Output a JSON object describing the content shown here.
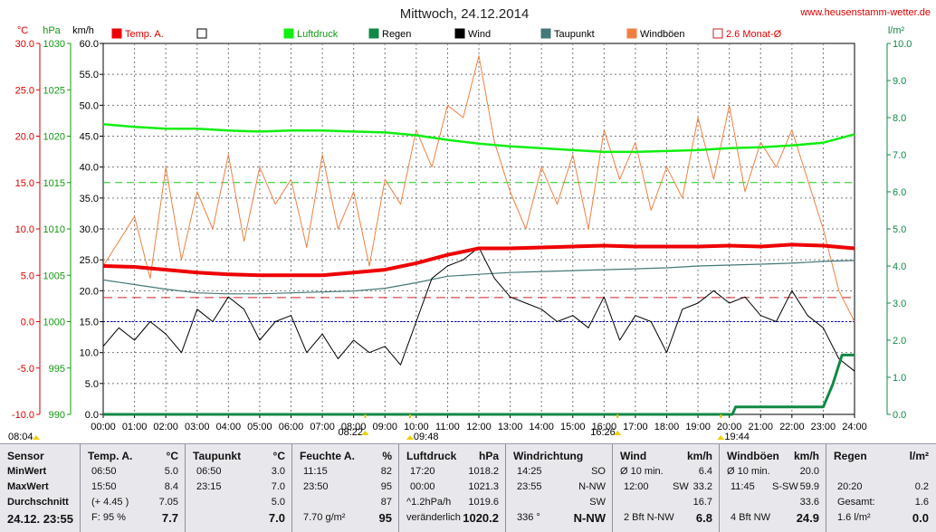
{
  "site": "www.heusenstamm-wetter.de",
  "title": "Mittwoch, 24.12.2014",
  "colors": {
    "temp": "#ee0000",
    "luftdruck": "#11ee11",
    "regen": "#118844",
    "wind": "#000000",
    "taupunkt": "#447777",
    "windboeen": "#f08040",
    "monat": "#cc2222",
    "dashed_blue": "#0000cc",
    "dashed_green": "#11cc11",
    "grid": "#333333"
  },
  "chart_data": {
    "type": "line",
    "unit_labels": {
      "temp": "°C",
      "pressure": "hPa",
      "wind": "km/h",
      "rain": "l/m²"
    },
    "axes": {
      "temp": {
        "range": [
          -10.0,
          30.0
        ],
        "ticks": [
          "30.0",
          "25.0",
          "20.0",
          "15.0",
          "10.0",
          "5.0",
          "0.0",
          "-5.0",
          "-10.0"
        ]
      },
      "pressure": {
        "range": [
          990,
          1030
        ],
        "ticks": [
          "1030",
          "1025",
          "1020",
          "1015",
          "1010",
          "1005",
          "1000",
          "995",
          "990"
        ]
      },
      "wind": {
        "range": [
          0,
          60
        ],
        "ticks": [
          "60.0",
          "55.0",
          "50.0",
          "45.0",
          "40.0",
          "35.0",
          "30.0",
          "25.0",
          "20.0",
          "15.0",
          "10.0",
          "5.0",
          "0.0"
        ]
      },
      "rain": {
        "range": [
          0,
          10
        ],
        "ticks": [
          "10.0",
          "9.0",
          "8.0",
          "7.0",
          "6.0",
          "5.0",
          "4.0",
          "3.0",
          "2.0",
          "1.0",
          "0.0"
        ]
      },
      "x_range": [
        0,
        24
      ],
      "x_ticks": [
        "00:00",
        "01:00",
        "02:00",
        "03:00",
        "04:00",
        "05:00",
        "06:00",
        "07:00",
        "08:00",
        "09:00",
        "10:00",
        "11:00",
        "12:00",
        "13:00",
        "14:00",
        "15:00",
        "16:00",
        "17:00",
        "18:00",
        "19:00",
        "20:00",
        "21:00",
        "22:00",
        "23:00",
        "24:00"
      ]
    },
    "grid": true,
    "legend": [
      {
        "name": "Temp. A.",
        "color": "#ee0000"
      },
      {
        "name": "",
        "color": "#ffffff"
      },
      {
        "name": "Luftdruck",
        "color": "#11ee11"
      },
      {
        "name": "Regen",
        "color": "#118844"
      },
      {
        "name": "Wind",
        "color": "#000000"
      },
      {
        "name": "Taupunkt",
        "color": "#447777"
      },
      {
        "name": "Windböen",
        "color": "#f08040"
      },
      {
        "name": "2.6 Monat-Ø",
        "color": "#cc2222",
        "hollow": true
      }
    ],
    "time_markers": [
      {
        "label": "08:04",
        "hour": 0.0,
        "row": "lower"
      },
      {
        "label": "08:22",
        "hour": 8.37,
        "row": "upper"
      },
      {
        "label": "09:48",
        "hour": 9.8,
        "row": "lower"
      },
      {
        "label": "16:26",
        "hour": 16.43,
        "row": "upper"
      },
      {
        "label": "19:44",
        "hour": 19.73,
        "row": "lower"
      }
    ],
    "reference_lines": {
      "monat_temp": 2.6,
      "blue_dotted_temp": 0.0,
      "green_dashed_pressure": 1015.0
    },
    "series": [
      {
        "name": "Temp. A.",
        "axis": "temp",
        "x": [
          0,
          1,
          2,
          3,
          4,
          5,
          6,
          7,
          8,
          9,
          10,
          11,
          12,
          13,
          14,
          15,
          16,
          17,
          18,
          19,
          20,
          21,
          22,
          23,
          24
        ],
        "y": [
          6.0,
          5.9,
          5.6,
          5.3,
          5.1,
          5.0,
          5.0,
          5.0,
          5.3,
          5.6,
          6.3,
          7.2,
          7.9,
          7.9,
          8.0,
          8.1,
          8.2,
          8.1,
          8.1,
          8.1,
          8.2,
          8.1,
          8.3,
          8.2,
          7.9
        ]
      },
      {
        "name": "Taupunkt",
        "axis": "temp",
        "x": [
          0,
          1,
          2,
          3,
          4,
          5,
          6,
          7,
          8,
          9,
          10,
          11,
          12,
          13,
          14,
          15,
          16,
          17,
          18,
          19,
          20,
          21,
          22,
          23,
          24
        ],
        "y": [
          4.5,
          4.0,
          3.5,
          3.1,
          3.0,
          3.0,
          3.1,
          3.2,
          3.3,
          3.6,
          4.2,
          4.9,
          5.1,
          5.3,
          5.4,
          5.5,
          5.6,
          5.7,
          5.8,
          6.0,
          6.1,
          6.2,
          6.3,
          6.5,
          6.6
        ]
      },
      {
        "name": "Luftdruck",
        "axis": "pressure",
        "x": [
          0,
          1,
          2,
          3,
          4,
          5,
          6,
          7,
          8,
          9,
          10,
          11,
          12,
          13,
          14,
          15,
          16,
          17,
          18,
          19,
          20,
          21,
          22,
          23,
          24
        ],
        "y": [
          1021.3,
          1021.0,
          1020.8,
          1020.8,
          1020.6,
          1020.5,
          1020.6,
          1020.6,
          1020.5,
          1020.4,
          1020.1,
          1019.6,
          1019.2,
          1018.9,
          1018.7,
          1018.5,
          1018.3,
          1018.3,
          1018.4,
          1018.5,
          1018.7,
          1018.8,
          1019.0,
          1019.3,
          1020.2
        ]
      },
      {
        "name": "Wind",
        "axis": "wind",
        "x": [
          0,
          0.5,
          1,
          1.5,
          2,
          2.5,
          3,
          3.5,
          4,
          4.5,
          5,
          5.5,
          6,
          6.5,
          7,
          7.5,
          8,
          8.5,
          9,
          9.5,
          10,
          10.5,
          11,
          11.5,
          12,
          12.5,
          13,
          13.5,
          14,
          14.5,
          15,
          15.5,
          16,
          16.5,
          17,
          17.5,
          18,
          18.5,
          19,
          19.5,
          20,
          20.5,
          21,
          21.5,
          22,
          22.5,
          23,
          23.5,
          24
        ],
        "y": [
          11,
          14,
          12,
          15,
          13,
          10,
          17,
          15,
          19,
          17,
          12,
          15,
          16,
          10,
          13,
          9,
          12,
          10,
          11,
          8,
          15,
          22,
          24,
          25,
          27,
          22,
          19,
          18,
          17,
          15,
          16,
          14,
          19,
          12,
          16,
          15,
          10,
          17,
          18,
          20,
          18,
          19,
          16,
          15,
          20,
          16,
          14,
          9,
          7
        ]
      },
      {
        "name": "Windböen",
        "axis": "wind",
        "x": [
          0,
          0.5,
          1,
          1.5,
          2,
          2.5,
          3,
          3.5,
          4,
          4.5,
          5,
          5.5,
          6,
          6.5,
          7,
          7.5,
          8,
          8.5,
          9,
          9.5,
          10,
          10.5,
          11,
          11.5,
          12,
          12.5,
          13,
          13.5,
          14,
          14.5,
          15,
          15.5,
          16,
          16.5,
          17,
          17.5,
          18,
          18.5,
          19,
          19.5,
          20,
          20.5,
          21,
          21.5,
          22,
          22.5,
          23,
          23.5,
          24
        ],
        "y": [
          24,
          28,
          32,
          22,
          40,
          25,
          36,
          30,
          42,
          28,
          40,
          34,
          38,
          27,
          42,
          30,
          36,
          24,
          38,
          34,
          46,
          40,
          50,
          48,
          58,
          44,
          36,
          30,
          40,
          34,
          42,
          30,
          46,
          38,
          44,
          33,
          40,
          35,
          48,
          38,
          50,
          36,
          44,
          40,
          46,
          38,
          30,
          20,
          15
        ]
      },
      {
        "name": "Regen",
        "axis": "rain",
        "x": [
          0,
          20.1,
          20.2,
          21,
          22,
          23,
          23.3,
          23.6,
          24
        ],
        "y": [
          0,
          0,
          0.2,
          0.2,
          0.2,
          0.2,
          0.8,
          1.6,
          1.6
        ]
      }
    ]
  },
  "stats": {
    "sensor": {
      "header": "Sensor",
      "rows": [
        "MinWert",
        "MaxWert",
        "Durchschnitt"
      ],
      "date": "24.12. 23:55"
    },
    "temp": {
      "header": "Temp. A.",
      "unit": "°C",
      "min_time": "06:50",
      "min_val": "5.0",
      "max_time": "15:50",
      "max_val": "8.4",
      "avg_note": "(+ 4.45 )",
      "avg_val": "7.05",
      "foot_note": "F: 95 %",
      "current": "7.7"
    },
    "taupunkt": {
      "header": "Taupunkt",
      "unit": "°C",
      "min_time": "06:50",
      "min_val": "3.0",
      "max_time": "23:15",
      "max_val": "7.0",
      "avg_val": "5.0",
      "current": "7.0"
    },
    "feuchte": {
      "header": "Feuchte A.",
      "unit": "%",
      "min_time": "11:15",
      "min_val": "82",
      "max_time": "23:50",
      "max_val": "95",
      "avg_val": "87",
      "foot_note": "7.70 g/m²",
      "current": "95"
    },
    "luftdruck": {
      "header": "Luftdruck",
      "unit": "hPa",
      "min_time": "17:20",
      "min_val": "1018.2",
      "max_time": "00:00",
      "max_val": "1021.3",
      "avg_note": "^1.2hPa/h",
      "avg_val": "1019.6",
      "foot_note": "veränderlich",
      "current": "1020.2"
    },
    "windrichtung": {
      "header": "Windrichtung",
      "min_time": "14:25",
      "min_val": "SO",
      "max_time": "23:55",
      "max_val": "N-NW",
      "avg_val": "SW",
      "foot_note": "336 °",
      "current": "N-NW"
    },
    "wind": {
      "header": "Wind",
      "unit": "km/h",
      "min_time": "Ø 10 min.",
      "min_val": "6.4",
      "max_time": "12:00",
      "max_dir": "SW",
      "max_val": "33.2",
      "avg_val": "16.7",
      "foot_note": "2 Bft N-NW",
      "current": "6.8"
    },
    "windboeen": {
      "header": "Windböen",
      "unit": "km/h",
      "min_time": "Ø 10 min.",
      "min_val": "20.0",
      "max_time": "11:45",
      "max_dir": "S-SW",
      "max_val": "59.9",
      "avg_val": "33.6",
      "foot_note": "4 Bft NW",
      "current": "24.9"
    },
    "regen": {
      "header": "Regen",
      "unit": "l/m²",
      "min_time": "20:20",
      "min_val": "0.2",
      "avg_note": "Gesamt:",
      "avg_val": "1.6",
      "foot_note": "1.6 l/m²",
      "current": "0.0"
    }
  }
}
